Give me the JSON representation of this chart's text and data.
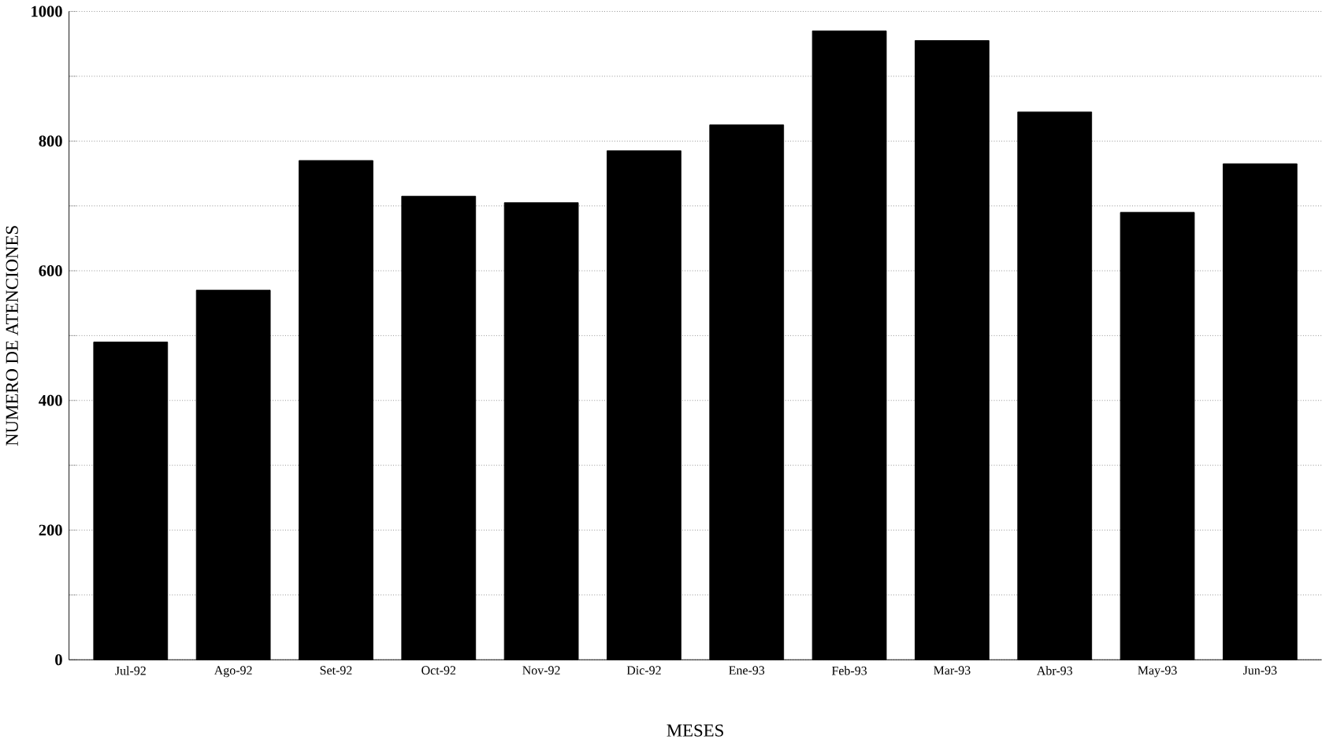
{
  "chart_data": {
    "type": "bar",
    "xlabel": "MESES",
    "ylabel": "NUMERO DE ATENCIONES",
    "categories": [
      "Jul-92",
      "Ago-92",
      "Set-92",
      "Oct-92",
      "Nov-92",
      "Dic-92",
      "Ene-93",
      "Feb-93",
      "Mar-93",
      "Abr-93",
      "May-93",
      "Jun-93"
    ],
    "values": [
      490,
      570,
      770,
      715,
      705,
      785,
      825,
      970,
      955,
      845,
      690,
      765
    ],
    "color": "#000000",
    "ylim": [
      0,
      1000
    ],
    "yticks": [
      0,
      {
        "value": 100,
        "label": null
      },
      200,
      {
        "value": 300,
        "label": null
      },
      400,
      {
        "value": 500,
        "label": null
      },
      600,
      {
        "value": 700,
        "label": null
      },
      800,
      {
        "value": 900,
        "label": null
      },
      1000
    ],
    "grid": "y"
  }
}
